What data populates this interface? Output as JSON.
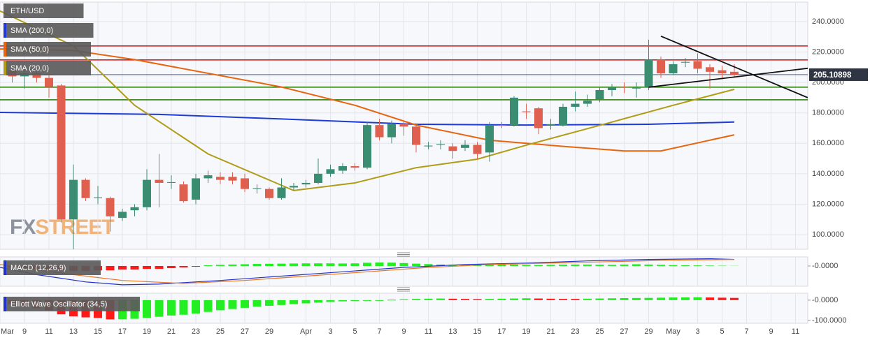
{
  "watermark": {
    "fx": "FX",
    "street": "STREET"
  },
  "chart_data": [
    {
      "type": "candlestick",
      "title": "ETH/USD",
      "x": [
        8,
        9,
        10,
        11,
        12,
        13,
        14,
        15,
        16,
        17,
        18,
        19,
        20,
        21,
        22,
        23,
        24,
        25,
        26,
        27,
        28,
        29,
        30,
        31,
        32,
        33,
        34,
        35,
        36,
        37,
        38,
        39,
        40,
        41,
        42,
        43,
        44,
        45,
        46,
        47,
        48,
        49,
        50,
        51,
        52,
        53,
        54,
        55,
        56,
        57,
        58,
        59,
        60,
        61,
        62,
        63,
        64,
        65,
        66,
        67
      ],
      "open": [
        208,
        204,
        206,
        203,
        198,
        110,
        136,
        124,
        124,
        111,
        116,
        118,
        136,
        134,
        133,
        123,
        137,
        138,
        138,
        137,
        130,
        130,
        124,
        131,
        133,
        134,
        140,
        142,
        145,
        144,
        172,
        164,
        173,
        171,
        158,
        159,
        158,
        157,
        159,
        154,
        172,
        172,
        181,
        183,
        172,
        172,
        184,
        186,
        189,
        195,
        197,
        196,
        197,
        215,
        206,
        213,
        214,
        210,
        208,
        207
      ],
      "high": [
        212,
        209,
        208,
        205,
        199,
        146,
        137,
        132,
        125,
        117,
        120,
        143,
        153,
        139,
        135,
        140,
        142,
        141,
        141,
        140,
        133,
        131,
        137,
        134,
        136,
        150,
        146,
        147,
        147,
        174,
        176,
        175,
        175,
        172,
        161,
        162,
        160,
        162,
        161,
        174,
        174,
        191,
        186,
        184,
        176,
        186,
        194,
        192,
        197,
        199,
        200,
        200,
        228,
        217,
        214,
        216,
        219,
        212,
        211,
        212
      ],
      "low": [
        200,
        196,
        200,
        190,
        108,
        90,
        122,
        120,
        102,
        109,
        112,
        116,
        118,
        130,
        121,
        120,
        134,
        133,
        133,
        128,
        127,
        123,
        123,
        129,
        131,
        133,
        138,
        140,
        142,
        143,
        162,
        160,
        165,
        154,
        156,
        156,
        150,
        155,
        150,
        148,
        170,
        171,
        176,
        166,
        169,
        171,
        181,
        184,
        187,
        191,
        193,
        190,
        195,
        203,
        205,
        210,
        206,
        196,
        202,
        203
      ],
      "close": [
        204,
        206,
        203,
        197,
        110,
        136,
        124,
        124.5,
        112,
        115,
        118,
        136,
        134,
        134.5,
        122,
        137,
        139,
        136,
        135.5,
        130,
        130.5,
        124,
        131,
        132,
        134,
        140,
        143,
        145,
        144,
        172,
        164,
        173,
        171,
        159,
        158.5,
        159.5,
        155,
        159,
        153,
        172,
        171.5,
        190,
        180.5,
        170,
        172.5,
        184,
        186,
        188,
        195,
        197,
        196.5,
        196.5,
        215,
        206,
        212,
        213.5,
        209,
        207,
        206,
        205.10898
      ],
      "up_color": "#3b8d72",
      "down_color": "#e0604f",
      "series": [
        {
          "name": "SMA (200,0)",
          "color": "#1f3ad6",
          "x": [
            7,
            20,
            30,
            41,
            50,
            60,
            67
          ],
          "values": [
            180.3,
            179,
            176,
            172.5,
            172,
            172.5,
            174
          ]
        },
        {
          "name": "SMA (50,0)",
          "color": "#e8650f",
          "x": [
            7,
            13,
            18,
            30,
            36,
            41,
            47,
            53,
            58,
            61,
            67
          ],
          "values": [
            222,
            221,
            215,
            197,
            185,
            172,
            162,
            158,
            155,
            155,
            165.6
          ]
        },
        {
          "name": "SMA (20,0)",
          "color": "#b09c16",
          "x": [
            7,
            13,
            18,
            24,
            31,
            36,
            41,
            46,
            50,
            57,
            62,
            67
          ],
          "values": [
            247,
            224,
            185,
            153,
            129,
            134,
            144,
            149.6,
            158.8,
            174,
            185,
            195.5
          ]
        }
      ],
      "hlines": [
        {
          "value": 224,
          "color": "#d42020"
        },
        {
          "value": 214.8,
          "color": "#d42020"
        },
        {
          "value": 196.9,
          "color": "#2f7d0f"
        },
        {
          "value": 188.6,
          "color": "#2f7d0f"
        }
      ],
      "trendlines": [
        {
          "x": [
            61,
            73
          ],
          "values": [
            230.4,
            190
          ],
          "color": "#111111"
        },
        {
          "x": [
            60,
            73
          ],
          "values": [
            196.9,
            209.3
          ],
          "color": "#111111"
        }
      ],
      "last_price": 205.10898,
      "last_price_color": "#33415c",
      "xlim": [
        7,
        73
      ],
      "xticks": [
        {
          "value": 7,
          "label": "Mar"
        },
        9,
        11,
        13,
        15,
        17,
        19,
        21,
        23,
        25,
        27,
        29,
        {
          "value": 32,
          "label": "Apr"
        },
        {
          "value": 34,
          "label": "3"
        },
        {
          "value": 36,
          "label": "5"
        },
        {
          "value": 38,
          "label": "7"
        },
        {
          "value": 40,
          "label": "9"
        },
        {
          "value": 42,
          "label": "11"
        },
        {
          "value": 44,
          "label": "13"
        },
        {
          "value": 46,
          "label": "15"
        },
        {
          "value": 48,
          "label": "17"
        },
        {
          "value": 50,
          "label": "19"
        },
        {
          "value": 52,
          "label": "21"
        },
        {
          "value": 54,
          "label": "23"
        },
        {
          "value": 56,
          "label": "25"
        },
        {
          "value": 58,
          "label": "27"
        },
        {
          "value": 60,
          "label": "29"
        },
        {
          "value": 62,
          "label": "May"
        },
        {
          "value": 64,
          "label": "3"
        },
        {
          "value": 66,
          "label": "5"
        },
        {
          "value": 68,
          "label": "7"
        },
        {
          "value": 70,
          "label": "9"
        },
        {
          "value": 72,
          "label": "11"
        }
      ],
      "ylim": [
        90.4,
        252.8
      ],
      "yticks": [
        {
          "value": 100,
          "label": "100.0000"
        },
        {
          "value": 120,
          "label": "120.0000"
        },
        {
          "value": 140,
          "label": "140.0000"
        },
        {
          "value": 160,
          "label": "160.0000"
        },
        {
          "value": 180,
          "label": "180.0000"
        },
        {
          "value": 200,
          "label": "200.0000"
        },
        {
          "value": 220,
          "label": "220.0000"
        },
        {
          "value": 240,
          "label": "240.0000"
        }
      ],
      "grid": true
    },
    {
      "type": "macd",
      "title": "MACD (12,26,9)",
      "x": [
        8,
        9,
        10,
        11,
        12,
        13,
        14,
        15,
        16,
        17,
        18,
        19,
        20,
        21,
        22,
        23,
        24,
        25,
        26,
        27,
        28,
        29,
        30,
        31,
        32,
        33,
        34,
        35,
        36,
        37,
        38,
        39,
        40,
        41,
        42,
        43,
        44,
        45,
        46,
        47,
        48,
        49,
        50,
        51,
        52,
        53,
        54,
        55,
        56,
        57,
        58,
        59,
        60,
        61,
        62,
        63,
        64,
        65,
        66,
        67
      ],
      "values": [
        -1,
        -1.5,
        -2,
        -2.5,
        -3,
        -3.5,
        -3.5,
        -3,
        -3,
        -2.5,
        -2.5,
        -2,
        -2,
        -1.5,
        -1,
        -0.5,
        0.5,
        0.8,
        1,
        1.2,
        1.4,
        1.5,
        1.6,
        1.7,
        1.8,
        1.8,
        1.8,
        1.7,
        1.8,
        2.2,
        2.4,
        2.3,
        2,
        1.6,
        1.3,
        1,
        0.8,
        0.6,
        0.6,
        0.8,
        1,
        1,
        0.8,
        0.7,
        0.8,
        0.9,
        1,
        1,
        0.9,
        0.8,
        1,
        1.2,
        1,
        0.8,
        0.6,
        0.5,
        0.4,
        0.3,
        0.2,
        0.1
      ],
      "up_color": "#22ee22",
      "down_color": "#ff1a1a",
      "series": [
        {
          "color": "#2233cc",
          "x": [
            7,
            10,
            14,
            17,
            20,
            25,
            30,
            35,
            40,
            45,
            50,
            55,
            60,
            65,
            67
          ],
          "values": [
            -1,
            -6,
            -11,
            -13,
            -12.5,
            -10,
            -7,
            -4,
            -1,
            1,
            2,
            3.5,
            4.5,
            5,
            4.5
          ]
        },
        {
          "color": "#e87722",
          "x": [
            7,
            12,
            17,
            22,
            27,
            32,
            37,
            42,
            47,
            52,
            57,
            62,
            67
          ],
          "values": [
            1,
            -5,
            -10,
            -12,
            -10,
            -7,
            -4,
            -1,
            1,
            2,
            3,
            4,
            4.5
          ]
        }
      ],
      "ylim": [
        -14,
        6.25
      ],
      "yticks": [
        {
          "value": 0,
          "label": "-0.0000"
        }
      ]
    },
    {
      "type": "oscillator",
      "title": "Elliott Wave Oscillator (34,5)",
      "x": [
        8,
        9,
        10,
        11,
        12,
        13,
        14,
        15,
        16,
        17,
        18,
        19,
        20,
        21,
        22,
        23,
        24,
        25,
        26,
        27,
        28,
        29,
        30,
        31,
        32,
        33,
        34,
        35,
        36,
        37,
        38,
        39,
        40,
        41,
        42,
        43,
        44,
        45,
        46,
        47,
        48,
        49,
        50,
        51,
        52,
        53,
        54,
        55,
        56,
        57,
        58,
        59,
        60,
        61,
        62,
        63,
        64,
        65,
        66,
        67
      ],
      "values": [
        -20,
        -30,
        -40,
        -50,
        -70,
        -80,
        -85,
        -88,
        -95,
        -94,
        -92,
        -88,
        -82,
        -76,
        -72,
        -66,
        -58,
        -50,
        -44,
        -38,
        -32,
        -28,
        -24,
        -20,
        -16,
        -12,
        -9,
        -6,
        -4,
        -2,
        -1,
        2,
        4,
        6,
        7,
        8,
        7,
        6,
        5,
        6,
        7,
        8,
        9,
        8,
        7,
        6,
        6,
        7,
        8,
        9,
        10,
        10.5,
        11,
        12,
        13,
        13.5,
        14,
        13,
        12,
        11
      ],
      "up_color": "#22ee22",
      "down_color": "#ff1a1a",
      "ylim": [
        -114,
        34
      ],
      "yticks": [
        {
          "value": 0,
          "label": "-0.0000"
        },
        {
          "value": -100,
          "label": "-100.0000"
        }
      ]
    }
  ]
}
